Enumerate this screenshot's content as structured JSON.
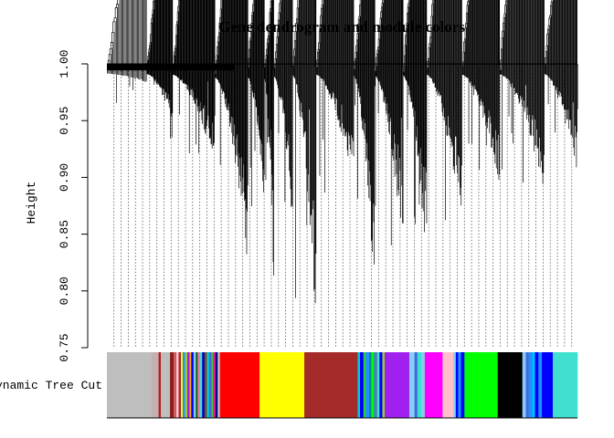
{
  "chart_data": {
    "type": "dendrogram",
    "title": "Gene dendrogram and module colors",
    "ylabel": "Height",
    "ylim": [
      0.75,
      1.0
    ],
    "yticks": [
      0.75,
      0.8,
      0.85,
      0.9,
      0.95,
      1.0
    ],
    "ytick_labels": [
      "0.75",
      "0.80",
      "0.85",
      "0.90",
      "0.95",
      "1.00"
    ],
    "guide_lines": "dotted",
    "color_bar_label": "Dynamic Tree Cut",
    "modules": [
      {
        "color": "#bebebe",
        "width": 0.078
      },
      {
        "color": "#c4b0b0",
        "width": 0.012
      },
      {
        "color": "#b22222",
        "width": 0.004
      },
      {
        "color": "#bebebe",
        "width": 0.016
      },
      {
        "color": "#8b1a1a",
        "width": 0.006
      },
      {
        "color": "#cd5c5c",
        "width": 0.005
      },
      {
        "color": "#ffc0cb",
        "width": 0.004
      },
      {
        "color": "#a52a2a",
        "width": 0.004
      },
      {
        "color": "#ffff00",
        "width": 0.003
      },
      {
        "color": "#1e90ff",
        "width": 0.004
      },
      {
        "color": "#9acd32",
        "width": 0.004
      },
      {
        "color": "#a020f0",
        "width": 0.004
      },
      {
        "color": "#ffa500",
        "width": 0.003
      },
      {
        "color": "#0000ff",
        "width": 0.004
      },
      {
        "color": "#87cefa",
        "width": 0.004
      },
      {
        "color": "#006400",
        "width": 0.003
      },
      {
        "color": "#ff69b4",
        "width": 0.004
      },
      {
        "color": "#40e0d0",
        "width": 0.004
      },
      {
        "color": "#0000cd",
        "width": 0.004
      },
      {
        "color": "#8b4513",
        "width": 0.004
      },
      {
        "color": "#00ced1",
        "width": 0.004
      },
      {
        "color": "#4169e1",
        "width": 0.004
      },
      {
        "color": "#32cd32",
        "width": 0.003
      },
      {
        "color": "#ff1493",
        "width": 0.004
      },
      {
        "color": "#000080",
        "width": 0.004
      },
      {
        "color": "#bebebe",
        "width": 0.004
      },
      {
        "color": "#ff0000",
        "width": 0.069
      },
      {
        "color": "#ffff00",
        "width": 0.078
      },
      {
        "color": "#a52a2a",
        "width": 0.093
      },
      {
        "color": "#00ced1",
        "width": 0.004
      },
      {
        "color": "#0000ff",
        "width": 0.006
      },
      {
        "color": "#32cd32",
        "width": 0.004
      },
      {
        "color": "#1e90ff",
        "width": 0.006
      },
      {
        "color": "#008b8b",
        "width": 0.004
      },
      {
        "color": "#00ff00",
        "width": 0.004
      },
      {
        "color": "#4682b4",
        "width": 0.006
      },
      {
        "color": "#40e0d0",
        "width": 0.004
      },
      {
        "color": "#0000ff",
        "width": 0.005
      },
      {
        "color": "#9acd32",
        "width": 0.004
      },
      {
        "color": "#a020f0",
        "width": 0.043
      },
      {
        "color": "#87cefa",
        "width": 0.009
      },
      {
        "color": "#4169e1",
        "width": 0.005
      },
      {
        "color": "#40e0d0",
        "width": 0.007
      },
      {
        "color": "#87ceeb",
        "width": 0.006
      },
      {
        "color": "#ff00ff",
        "width": 0.031
      },
      {
        "color": "#ffc0cb",
        "width": 0.019
      },
      {
        "color": "#87ceeb",
        "width": 0.004
      },
      {
        "color": "#0000ff",
        "width": 0.004
      },
      {
        "color": "#1e90ff",
        "width": 0.005
      },
      {
        "color": "#0000ff",
        "width": 0.006
      },
      {
        "color": "#00ff00",
        "width": 0.058
      },
      {
        "color": "#000000",
        "width": 0.043
      },
      {
        "color": "#87cefa",
        "width": 0.006
      },
      {
        "color": "#4169e1",
        "width": 0.005
      },
      {
        "color": "#1e90ff",
        "width": 0.006
      },
      {
        "color": "#00bfff",
        "width": 0.005
      },
      {
        "color": "#0000ff",
        "width": 0.006
      },
      {
        "color": "#1e90ff",
        "width": 0.006
      },
      {
        "color": "#0000ff",
        "width": 0.019
      },
      {
        "color": "#40e0d0",
        "width": 0.043
      }
    ],
    "branches": [
      {
        "start": 0.0,
        "end": 0.085,
        "merge": 0.9995,
        "depth": 0.96,
        "leaves": 12,
        "density": 0.3
      },
      {
        "start": 0.085,
        "end": 0.14,
        "merge": 0.999,
        "depth": 0.92,
        "leaves": 16,
        "density": 0.6
      },
      {
        "start": 0.14,
        "end": 0.23,
        "merge": 0.9985,
        "depth": 0.89,
        "leaves": 26,
        "density": 0.8
      },
      {
        "start": 0.23,
        "end": 0.3,
        "merge": 0.996,
        "depth": 0.82,
        "leaves": 20,
        "density": 1.0
      },
      {
        "start": 0.3,
        "end": 0.335,
        "merge": 0.996,
        "depth": 0.86,
        "leaves": 10,
        "density": 0.9
      },
      {
        "start": 0.335,
        "end": 0.355,
        "merge": 0.995,
        "depth": 0.775,
        "leaves": 6,
        "density": 1.0
      },
      {
        "start": 0.355,
        "end": 0.395,
        "merge": 0.997,
        "depth": 0.84,
        "leaves": 10,
        "density": 0.9
      },
      {
        "start": 0.395,
        "end": 0.445,
        "merge": 0.998,
        "depth": 0.76,
        "leaves": 12,
        "density": 1.0
      },
      {
        "start": 0.445,
        "end": 0.525,
        "merge": 0.9985,
        "depth": 0.88,
        "leaves": 20,
        "density": 0.9
      },
      {
        "start": 0.525,
        "end": 0.57,
        "merge": 0.9975,
        "depth": 0.785,
        "leaves": 12,
        "density": 1.0
      },
      {
        "start": 0.57,
        "end": 0.63,
        "merge": 0.9975,
        "depth": 0.83,
        "leaves": 16,
        "density": 1.0
      },
      {
        "start": 0.63,
        "end": 0.68,
        "merge": 0.998,
        "depth": 0.82,
        "leaves": 14,
        "density": 1.0
      },
      {
        "start": 0.68,
        "end": 0.755,
        "merge": 0.9985,
        "depth": 0.855,
        "leaves": 18,
        "density": 1.0
      },
      {
        "start": 0.755,
        "end": 0.835,
        "merge": 0.9985,
        "depth": 0.89,
        "leaves": 20,
        "density": 1.0
      },
      {
        "start": 0.835,
        "end": 0.93,
        "merge": 0.999,
        "depth": 0.885,
        "leaves": 22,
        "density": 1.0
      },
      {
        "start": 0.93,
        "end": 1.0,
        "merge": 0.999,
        "depth": 0.9,
        "leaves": 16,
        "density": 1.0
      }
    ]
  }
}
